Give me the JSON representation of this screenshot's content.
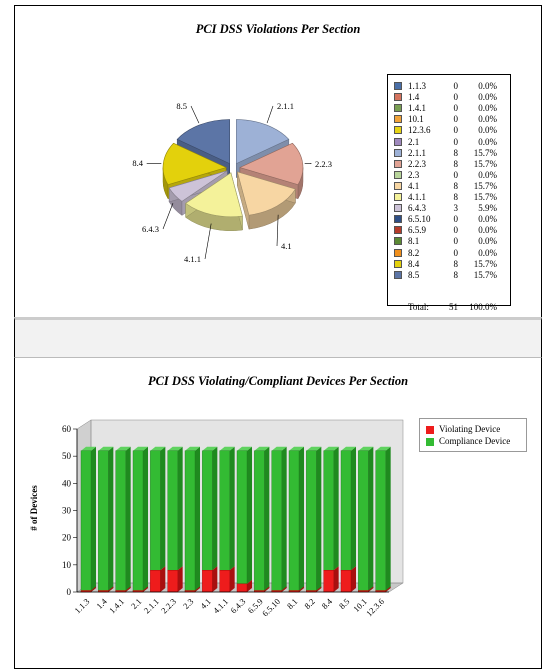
{
  "chart_data": [
    {
      "type": "pie",
      "title": "PCI DSS Violations Per Section",
      "slice_labels": [
        "2.1.1",
        "2.2.3",
        "4.1",
        "4.1.1",
        "6.4.3",
        "8.4",
        "8.5"
      ],
      "slice_values": [
        8,
        8,
        8,
        8,
        3,
        8,
        8
      ],
      "slice_colors": [
        "#9db1d6",
        "#e1a394",
        "#f7d6a3",
        "#f4f29a",
        "#cdc3d8",
        "#e3d10c",
        "#5c75a6"
      ],
      "legend": [
        {
          "label": "1.1.3",
          "value": "0",
          "pct": "0.0%",
          "color": "#4a6fa8"
        },
        {
          "label": "1.4",
          "value": "0",
          "pct": "0.0%",
          "color": "#d4735e"
        },
        {
          "label": "1.4.1",
          "value": "0",
          "pct": "0.0%",
          "color": "#7aa053"
        },
        {
          "label": "10.1",
          "value": "0",
          "pct": "0.0%",
          "color": "#f1a33a"
        },
        {
          "label": "12.3.6",
          "value": "0",
          "pct": "0.0%",
          "color": "#e6d414"
        },
        {
          "label": "2.1",
          "value": "0",
          "pct": "0.0%",
          "color": "#9f89bd"
        },
        {
          "label": "2.1.1",
          "value": "8",
          "pct": "15.7%",
          "color": "#9db1d6"
        },
        {
          "label": "2.2.3",
          "value": "8",
          "pct": "15.7%",
          "color": "#e1a394"
        },
        {
          "label": "2.3",
          "value": "0",
          "pct": "0.0%",
          "color": "#b8d59b"
        },
        {
          "label": "4.1",
          "value": "8",
          "pct": "15.7%",
          "color": "#f7d6a3"
        },
        {
          "label": "4.1.1",
          "value": "8",
          "pct": "15.7%",
          "color": "#f4f29a"
        },
        {
          "label": "6.4.3",
          "value": "3",
          "pct": "5.9%",
          "color": "#cdc3d8"
        },
        {
          "label": "6.5.10",
          "value": "0",
          "pct": "0.0%",
          "color": "#2f4f86"
        },
        {
          "label": "6.5.9",
          "value": "0",
          "pct": "0.0%",
          "color": "#b53b2a"
        },
        {
          "label": "8.1",
          "value": "0",
          "pct": "0.0%",
          "color": "#5b8a34"
        },
        {
          "label": "8.2",
          "value": "0",
          "pct": "0.0%",
          "color": "#ef8f1c"
        },
        {
          "label": "8.4",
          "value": "8",
          "pct": "15.7%",
          "color": "#e3d10c"
        },
        {
          "label": "8.5",
          "value": "8",
          "pct": "15.7%",
          "color": "#5c75a6"
        }
      ],
      "total_label": "Total:",
      "total_value": "51",
      "total_pct": "100.0%"
    },
    {
      "type": "bar",
      "title": "PCI DSS Violating/Compliant Devices Per Section",
      "ylabel": "# of Devices",
      "ylim": [
        0,
        60
      ],
      "yticks": [
        0,
        10,
        20,
        30,
        40,
        50,
        60
      ],
      "categories": [
        "1.1.3",
        "1.4",
        "1.4.1",
        "2.1",
        "2.1.1",
        "2.2.3",
        "2.3",
        "4.1",
        "4.1.1",
        "6.4.3",
        "6.5.9",
        "6.5.10",
        "8.1",
        "8.2",
        "8.4",
        "8.5",
        "10.1",
        "12.3.6"
      ],
      "series": [
        {
          "name": "Violating Device",
          "color": "#ee1c1c",
          "values": [
            0,
            0,
            0,
            0,
            8,
            8,
            0,
            8,
            8,
            3,
            0,
            0,
            0,
            0,
            8,
            8,
            0,
            0
          ]
        },
        {
          "name": "Compliance Device",
          "color": "#33bb33",
          "values": [
            52,
            52,
            52,
            52,
            44,
            44,
            52,
            44,
            44,
            49,
            52,
            52,
            52,
            52,
            44,
            44,
            52,
            52
          ]
        }
      ],
      "legend_placement": "top-right"
    }
  ]
}
